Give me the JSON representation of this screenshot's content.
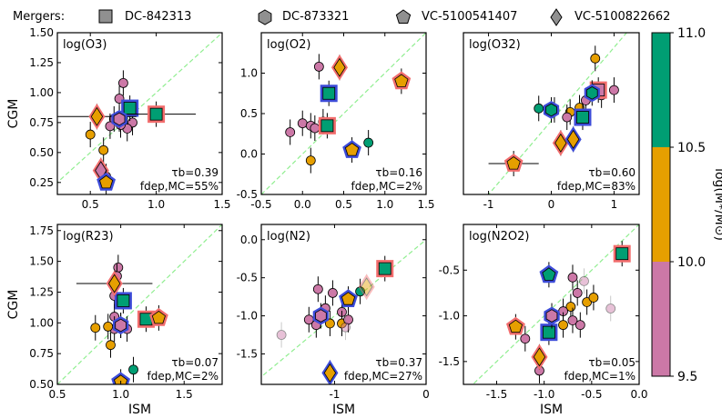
{
  "legend": {
    "title": "Mergers:",
    "items": [
      {
        "label": "DC-842313",
        "marker": "square"
      },
      {
        "label": "DC-873321",
        "marker": "hexagon"
      },
      {
        "label": "VC-5100541407",
        "marker": "pentagon"
      },
      {
        "label": "VC-5100822662",
        "marker": "diamond"
      }
    ]
  },
  "colorbar": {
    "label": "log(M*/M⊙)",
    "ticks": [
      "11.0",
      "10.5",
      "10.0",
      "9.5"
    ],
    "bins": [
      {
        "from": 9.5,
        "to": 10.0,
        "color": "#cc78a7"
      },
      {
        "from": 10.0,
        "to": 10.5,
        "color": "#e69f00"
      },
      {
        "from": 10.5,
        "to": 11.0,
        "color": "#009e73"
      }
    ]
  },
  "colors": {
    "low": "#cc78a7",
    "mid": "#e69f00",
    "high": "#009e73",
    "halo_red": "#f26d6d",
    "halo_blue": "#3d4cd9",
    "one_to_one": "#90ee90"
  },
  "chart_data": [
    {
      "type": "scatter",
      "title": "log(O3)",
      "ylabel": "CGM",
      "xlabel": "",
      "xlim": [
        0.25,
        1.5
      ],
      "ylim": [
        0.15,
        1.5
      ],
      "xticks": [
        "0.5",
        "1.0",
        "1.5"
      ],
      "yticks": [
        "0.25",
        "0.50",
        "0.75",
        "1.00",
        "1.25",
        "1.50"
      ],
      "tau_b": "τb=0.39",
      "f_dep": "fdep,MC=55%",
      "points": [
        {
          "x": 0.75,
          "y": 1.08,
          "c": "low"
        },
        {
          "x": 0.72,
          "y": 0.95,
          "c": "low"
        },
        {
          "x": 0.68,
          "y": 0.78,
          "c": "low"
        },
        {
          "x": 0.82,
          "y": 0.75,
          "c": "low"
        },
        {
          "x": 0.65,
          "y": 0.72,
          "c": "low"
        },
        {
          "x": 0.78,
          "y": 0.7,
          "c": "low"
        },
        {
          "x": 0.73,
          "y": 0.73,
          "c": "low"
        },
        {
          "x": 0.62,
          "y": 0.3,
          "c": "low"
        },
        {
          "x": 0.5,
          "y": 0.65,
          "c": "mid"
        },
        {
          "x": 0.6,
          "y": 0.52,
          "c": "mid"
        },
        {
          "x": 0.58,
          "y": 0.32,
          "c": "high"
        },
        {
          "x": 0.8,
          "y": 0.87,
          "c": "high",
          "m": "square",
          "halo": "blue"
        },
        {
          "x": 1.0,
          "y": 0.82,
          "c": "high",
          "m": "square",
          "halo": "red",
          "xerr": 0.3
        },
        {
          "x": 0.55,
          "y": 0.8,
          "c": "mid",
          "m": "diamond",
          "halo": "red",
          "xerr": 0.3
        },
        {
          "x": 0.72,
          "y": 0.78,
          "c": "low",
          "m": "hexagon",
          "halo": "blue"
        },
        {
          "x": 0.58,
          "y": 0.35,
          "c": "low",
          "m": "diamond",
          "halo": "red"
        },
        {
          "x": 0.62,
          "y": 0.25,
          "c": "mid",
          "m": "pentagon",
          "halo": "blue"
        }
      ]
    },
    {
      "type": "scatter",
      "title": "log(O2)",
      "ylabel": "",
      "xlabel": "",
      "xlim": [
        -0.5,
        1.5
      ],
      "ylim": [
        -0.5,
        1.5
      ],
      "xticks": [
        "-0.5",
        "0.0",
        "0.5",
        "1.0",
        "1.5"
      ],
      "yticks": [
        "-0.5",
        "0.0",
        "0.5",
        "1.0"
      ],
      "tau_b": "τb=0.16",
      "f_dep": "fdep,MC=2%",
      "points": [
        {
          "x": 0.2,
          "y": 1.08,
          "c": "low"
        },
        {
          "x": 0.0,
          "y": 0.38,
          "c": "low"
        },
        {
          "x": -0.15,
          "y": 0.27,
          "c": "low"
        },
        {
          "x": 0.1,
          "y": 0.35,
          "c": "low"
        },
        {
          "x": 0.25,
          "y": 0.4,
          "c": "low"
        },
        {
          "x": 0.15,
          "y": 0.32,
          "c": "low"
        },
        {
          "x": 0.1,
          "y": -0.08,
          "c": "mid"
        },
        {
          "x": 0.8,
          "y": 0.14,
          "c": "high"
        },
        {
          "x": 0.32,
          "y": 0.75,
          "c": "high",
          "m": "square",
          "halo": "blue"
        },
        {
          "x": 0.3,
          "y": 0.35,
          "c": "high",
          "m": "square",
          "halo": "red"
        },
        {
          "x": 0.45,
          "y": 1.07,
          "c": "mid",
          "m": "diamond",
          "halo": "red"
        },
        {
          "x": 1.2,
          "y": 0.9,
          "c": "mid",
          "m": "pentagon",
          "halo": "red"
        },
        {
          "x": 0.6,
          "y": 0.05,
          "c": "mid",
          "m": "pentagon",
          "halo": "blue"
        }
      ]
    },
    {
      "type": "scatter",
      "title": "log(O32)",
      "ylabel": "",
      "xlabel": "",
      "xlim": [
        -1.4,
        1.4
      ],
      "ylim": [
        -1.0,
        1.2
      ],
      "xticks": [
        "-1",
        "0",
        "1"
      ],
      "yticks": [],
      "tau_b": "τb=0.60",
      "f_dep": "fdep,MC=83%",
      "points": [
        {
          "x": 0.7,
          "y": 0.85,
          "c": "mid"
        },
        {
          "x": 1.0,
          "y": 0.42,
          "c": "low"
        },
        {
          "x": 0.8,
          "y": 0.35,
          "c": "low"
        },
        {
          "x": 0.3,
          "y": 0.12,
          "c": "mid"
        },
        {
          "x": 0.45,
          "y": 0.18,
          "c": "mid"
        },
        {
          "x": 0.55,
          "y": 0.28,
          "c": "low"
        },
        {
          "x": 0.05,
          "y": 0.15,
          "c": "mid"
        },
        {
          "x": -0.2,
          "y": 0.17,
          "c": "high"
        },
        {
          "x": 0.25,
          "y": 0.05,
          "c": "low"
        },
        {
          "x": 0.5,
          "y": 0.05,
          "c": "high",
          "m": "square",
          "halo": "blue"
        },
        {
          "x": 0.75,
          "y": 0.42,
          "c": "low",
          "m": "square",
          "halo": "red"
        },
        {
          "x": 0.65,
          "y": 0.38,
          "c": "high",
          "m": "hexagon",
          "halo": "blue"
        },
        {
          "x": 0.0,
          "y": 0.15,
          "c": "high",
          "m": "hexagon",
          "halo": "blue"
        },
        {
          "x": 0.15,
          "y": -0.3,
          "c": "mid",
          "m": "diamond",
          "halo": "red"
        },
        {
          "x": 0.35,
          "y": -0.25,
          "c": "mid",
          "m": "diamond",
          "halo": "blue"
        },
        {
          "x": -0.6,
          "y": -0.58,
          "c": "mid",
          "m": "pentagon",
          "halo": "red",
          "xerr": 0.4
        }
      ]
    },
    {
      "type": "scatter",
      "title": "log(R23)",
      "ylabel": "CGM",
      "xlabel": "ISM",
      "xlim": [
        0.5,
        1.8
      ],
      "ylim": [
        0.5,
        1.8
      ],
      "xticks": [
        "0.5",
        "1.0",
        "1.5"
      ],
      "yticks": [
        "0.50",
        "0.75",
        "1.00",
        "1.25",
        "1.50",
        "1.75"
      ],
      "tau_b": "τb=0.07",
      "f_dep": "fdep,MC=2%",
      "points": [
        {
          "x": 0.98,
          "y": 1.45,
          "c": "low"
        },
        {
          "x": 0.97,
          "y": 1.38,
          "c": "low"
        },
        {
          "x": 0.95,
          "y": 1.22,
          "c": "low"
        },
        {
          "x": 0.95,
          "y": 1.05,
          "c": "low"
        },
        {
          "x": 1.0,
          "y": 0.98,
          "c": "low"
        },
        {
          "x": 1.05,
          "y": 0.95,
          "c": "low"
        },
        {
          "x": 0.95,
          "y": 0.95,
          "c": "low"
        },
        {
          "x": 0.9,
          "y": 0.97,
          "c": "mid"
        },
        {
          "x": 0.8,
          "y": 0.96,
          "c": "mid"
        },
        {
          "x": 0.92,
          "y": 0.82,
          "c": "mid"
        },
        {
          "x": 1.1,
          "y": 0.62,
          "c": "high"
        },
        {
          "x": 1.02,
          "y": 1.18,
          "c": "high",
          "m": "square",
          "halo": "blue"
        },
        {
          "x": 1.2,
          "y": 1.03,
          "c": "high",
          "m": "square",
          "halo": "red"
        },
        {
          "x": 0.95,
          "y": 1.32,
          "c": "mid",
          "m": "diamond",
          "halo": "red",
          "xerr": 0.3
        },
        {
          "x": 1.3,
          "y": 1.04,
          "c": "mid",
          "m": "pentagon",
          "halo": "red"
        },
        {
          "x": 1.0,
          "y": 0.98,
          "c": "low",
          "m": "hexagon",
          "halo": "blue"
        },
        {
          "x": 1.0,
          "y": 0.52,
          "c": "mid",
          "m": "pentagon",
          "halo": "blue"
        }
      ]
    },
    {
      "type": "scatter",
      "title": "log(N2)",
      "ylabel": "",
      "xlabel": "ISM",
      "xlim": [
        -1.8,
        0.0
      ],
      "ylim": [
        -1.9,
        0.2
      ],
      "xticks": [
        "-1",
        "0"
      ],
      "yticks": [
        "-1.5",
        "-1.0",
        "-0.5",
        "0.0"
      ],
      "tau_b": "τb=0.37",
      "f_dep": "fdep,MC=27%",
      "points": [
        {
          "x": -1.18,
          "y": -0.65,
          "c": "low"
        },
        {
          "x": -1.02,
          "y": -0.7,
          "c": "low"
        },
        {
          "x": -0.92,
          "y": -0.95,
          "c": "low"
        },
        {
          "x": -1.28,
          "y": -1.05,
          "c": "low"
        },
        {
          "x": -1.2,
          "y": -1.12,
          "c": "low"
        },
        {
          "x": -1.1,
          "y": -0.9,
          "c": "low"
        },
        {
          "x": -1.05,
          "y": -1.1,
          "c": "mid"
        },
        {
          "x": -0.92,
          "y": -1.1,
          "c": "mid"
        },
        {
          "x": -0.85,
          "y": -1.05,
          "c": "low"
        },
        {
          "x": -1.58,
          "y": -1.25,
          "c": "low",
          "faint": true
        },
        {
          "x": -0.88,
          "y": -1.15,
          "c": "low",
          "faint": true
        },
        {
          "x": -0.72,
          "y": -0.68,
          "c": "high"
        },
        {
          "x": -0.45,
          "y": -0.38,
          "c": "high",
          "m": "square",
          "halo": "red"
        },
        {
          "x": -0.65,
          "y": -0.62,
          "c": "mid",
          "m": "diamond",
          "halo": "red",
          "faint": true
        },
        {
          "x": -0.85,
          "y": -0.78,
          "c": "mid",
          "m": "pentagon",
          "halo": "blue"
        },
        {
          "x": -1.15,
          "y": -1.0,
          "c": "low",
          "m": "hexagon",
          "halo": "blue"
        },
        {
          "x": -1.05,
          "y": -1.75,
          "c": "mid",
          "m": "diamond",
          "halo": "blue"
        }
      ]
    },
    {
      "type": "scatter",
      "title": "log(N2O2)",
      "ylabel": "",
      "xlabel": "ISM",
      "xlim": [
        -1.85,
        0.0
      ],
      "ylim": [
        -1.75,
        0.0
      ],
      "xticks": [
        "-1.5",
        "-1.0",
        "-0.5",
        "0.0"
      ],
      "yticks": [
        "-1.5",
        "-1.0",
        "-0.5"
      ],
      "tau_b": "τb=0.05",
      "f_dep": "fdep,MC=1%",
      "points": [
        {
          "x": -0.7,
          "y": -0.58,
          "c": "low"
        },
        {
          "x": -0.65,
          "y": -0.75,
          "c": "low"
        },
        {
          "x": -0.55,
          "y": -0.85,
          "c": "mid"
        },
        {
          "x": -0.48,
          "y": -0.8,
          "c": "mid"
        },
        {
          "x": -0.72,
          "y": -0.9,
          "c": "mid"
        },
        {
          "x": -0.8,
          "y": -0.95,
          "c": "low"
        },
        {
          "x": -0.7,
          "y": -1.05,
          "c": "low"
        },
        {
          "x": -0.62,
          "y": -1.1,
          "c": "low"
        },
        {
          "x": -0.8,
          "y": -1.1,
          "c": "mid"
        },
        {
          "x": -1.2,
          "y": -1.25,
          "c": "low"
        },
        {
          "x": -1.05,
          "y": -1.6,
          "c": "low"
        },
        {
          "x": -0.58,
          "y": -0.62,
          "c": "low",
          "faint": true
        },
        {
          "x": -0.3,
          "y": -0.92,
          "c": "low",
          "faint": true
        },
        {
          "x": -0.18,
          "y": -0.32,
          "c": "high",
          "m": "square",
          "halo": "red"
        },
        {
          "x": -0.95,
          "y": -0.55,
          "c": "high",
          "m": "pentagon",
          "halo": "blue"
        },
        {
          "x": -0.95,
          "y": -1.18,
          "c": "high",
          "m": "square",
          "halo": "blue"
        },
        {
          "x": -0.92,
          "y": -1.0,
          "c": "low",
          "m": "hexagon",
          "halo": "blue"
        },
        {
          "x": -1.05,
          "y": -1.45,
          "c": "mid",
          "m": "diamond",
          "halo": "red"
        },
        {
          "x": -1.3,
          "y": -1.12,
          "c": "mid",
          "m": "pentagon",
          "halo": "red"
        }
      ]
    }
  ]
}
